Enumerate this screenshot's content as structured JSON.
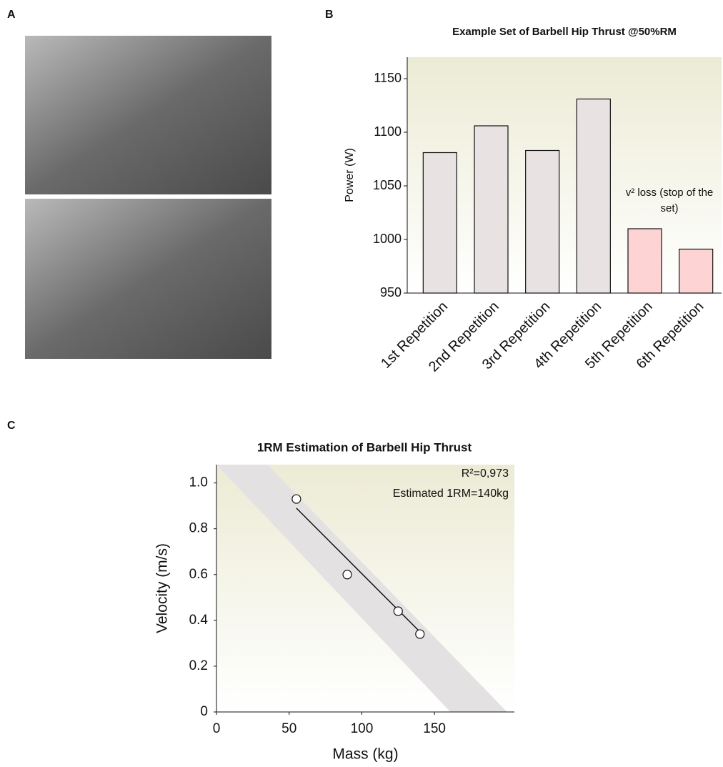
{
  "panel_labels": [
    "A",
    "B",
    "C"
  ],
  "chart_data": [
    {
      "type": "bar",
      "title": "Example Set of Barbell Hip Thrust @50%RM",
      "y_label": "Power (W)",
      "categories": [
        "1st Repetition",
        "2nd Repetition",
        "3rd Repetition",
        "4th Repetition",
        "5th Repetition",
        "6th Repetition"
      ],
      "values": [
        1081,
        1106,
        1083,
        1131,
        1010,
        991
      ],
      "colors": [
        "#e9e2e3",
        "#e9e2e3",
        "#e9e2e3",
        "#e9e2e3",
        "#fdd3d3",
        "#fdd3d3"
      ],
      "ylim": [
        950,
        1170
      ],
      "yticks": [
        950,
        1000,
        1050,
        1100,
        1150
      ],
      "annotation": "v² loss (stop of the set)"
    },
    {
      "type": "scatter",
      "title": "1RM Estimation of Barbell Hip Thrust",
      "x_label": "Mass (kg)",
      "y_label": "Velocity (m/s)",
      "x": [
        55,
        90,
        125,
        140
      ],
      "values": [
        0.93,
        0.6,
        0.44,
        0.34
      ],
      "xlim": [
        0,
        205
      ],
      "ylim": [
        0,
        1.08
      ],
      "xticks": [
        0,
        50,
        100,
        150
      ],
      "yticks": [
        0,
        0.2,
        0.4,
        0.6,
        0.8,
        {
          "value": 1,
          "label": "1.0"
        }
      ],
      "fit_line": {
        "x": [
          55,
          140
        ],
        "y": [
          0.89,
          0.35
        ]
      },
      "band": {
        "lower": {
          "x": [
            0,
            161
          ],
          "y": [
            1.08,
            0
          ]
        },
        "upper": {
          "x": [
            35,
            200
          ],
          "y": [
            1.08,
            0
          ]
        }
      },
      "annotations": [
        "R²=0,973",
        "Estimated 1RM=140kg"
      ]
    }
  ]
}
